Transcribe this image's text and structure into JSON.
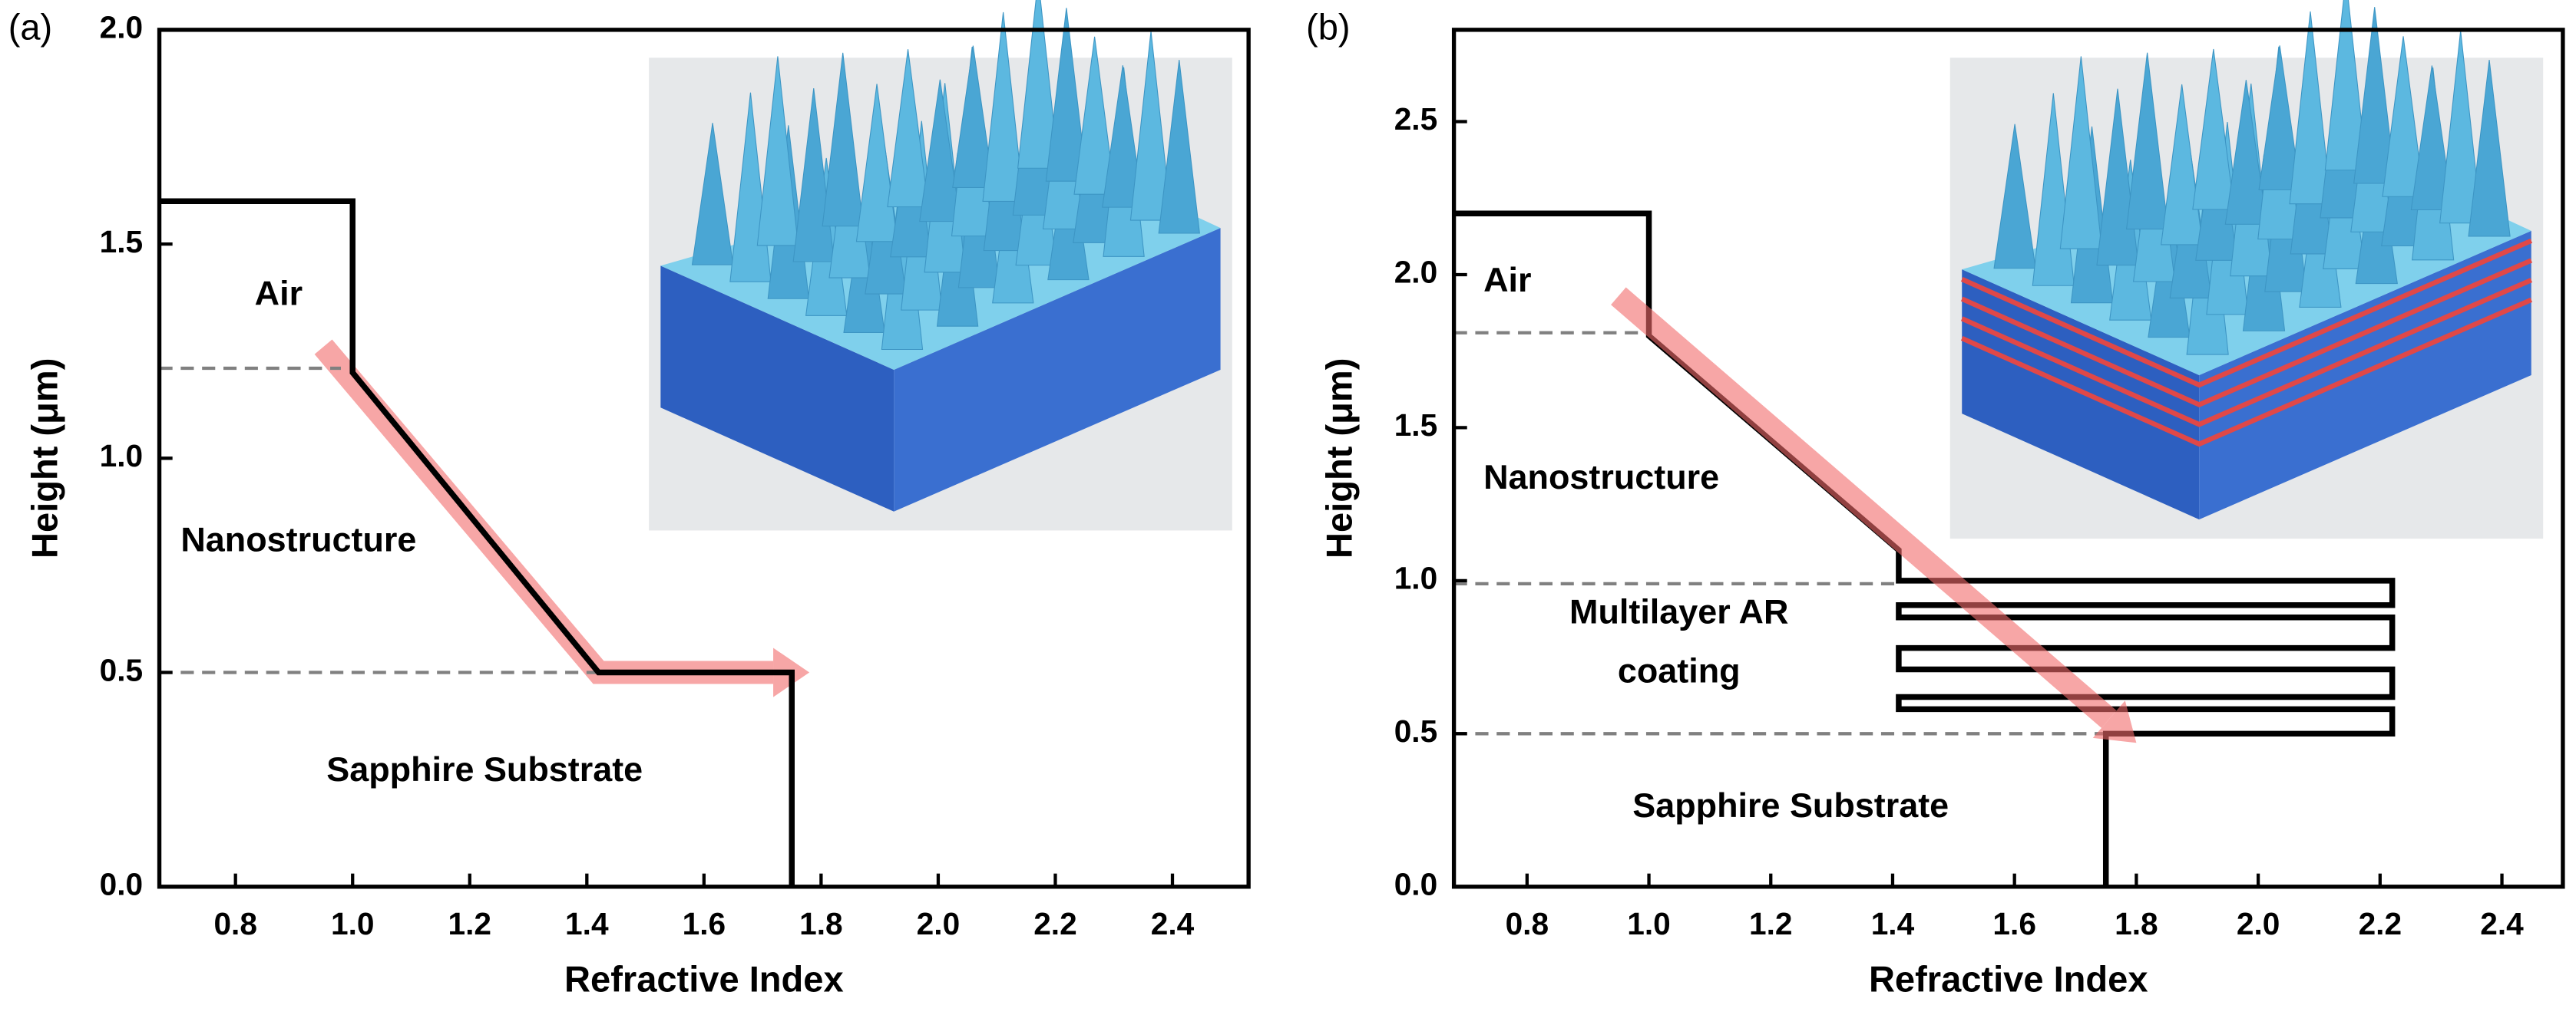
{
  "chart_data": [
    {
      "type": "line",
      "panel": "(a)",
      "xlabel": "Refractive Index",
      "ylabel": "Height (μm)",
      "xlim": [
        0.67,
        2.53
      ],
      "ylim": [
        0,
        2.0
      ],
      "xticks": [
        0.8,
        {
          "value": 1,
          "label": "1.0"
        },
        1.2,
        1.4,
        1.6,
        1.8,
        {
          "value": 2,
          "label": "2.0"
        },
        2.2,
        2.4
      ],
      "yticks": [
        {
          "value": 0,
          "label": "0.0"
        },
        0.5,
        {
          "value": 1,
          "label": "1.0"
        },
        1.5,
        {
          "value": 2,
          "label": "2.0"
        }
      ],
      "annotations": [
        "Air",
        "Nanostructure",
        "Sapphire Substrate"
      ],
      "series": [
        {
          "style": "arrow",
          "color": "#f26b6b",
          "x": [
            0.95,
            1.42,
            1.78
          ],
          "values": [
            1.26,
            0.5,
            0.5
          ]
        },
        {
          "style": "dashed",
          "color": "#808080",
          "x": [
            0.67,
            0.98
          ],
          "values": [
            1.21,
            1.21
          ]
        },
        {
          "style": "dashed",
          "color": "#808080",
          "x": [
            0.67,
            1.42
          ],
          "values": [
            0.5,
            0.5
          ]
        },
        {
          "style": "solid",
          "color": "#000000",
          "x": [
            0.67,
            1.0,
            1.0,
            1.42,
            1.75,
            1.75
          ],
          "values": [
            1.6,
            1.6,
            1.2,
            0.5,
            0.5,
            0
          ]
        }
      ]
    },
    {
      "type": "line",
      "panel": "(b)",
      "xlabel": "Refractive Index",
      "ylabel": "Height (μm)",
      "xlim": [
        0.68,
        2.5
      ],
      "ylim": [
        0,
        2.8
      ],
      "xticks": [
        0.8,
        {
          "value": 1,
          "label": "1.0"
        },
        1.2,
        1.4,
        1.6,
        1.8,
        {
          "value": 2,
          "label": "2.0"
        },
        2.2,
        2.4
      ],
      "yticks": [
        {
          "value": 0,
          "label": "0.0"
        },
        0.5,
        {
          "value": 1,
          "label": "1.0"
        },
        1.5,
        {
          "value": 2,
          "label": "2.0"
        },
        2.5
      ],
      "annotations": [
        "Air",
        "Nanostructure",
        "Multilayer AR",
        "coating",
        "Sapphire Substrate"
      ],
      "series": [
        {
          "style": "dashed",
          "color": "#808080",
          "x": [
            0.68,
            1.0
          ],
          "values": [
            1.81,
            1.81
          ]
        },
        {
          "style": "dashed",
          "color": "#808080",
          "x": [
            0.68,
            1.41
          ],
          "values": [
            0.99,
            0.99
          ]
        },
        {
          "style": "dashed",
          "color": "#808080",
          "x": [
            0.68,
            1.75
          ],
          "values": [
            0.5,
            0.5
          ]
        },
        {
          "style": "solid",
          "color": "#000000",
          "x": [
            0.68,
            1.0,
            1.0,
            1.41,
            1.41,
            2.22,
            2.22,
            1.41,
            1.41,
            2.22,
            2.22,
            1.41,
            1.41,
            2.22,
            2.22,
            1.41,
            1.41,
            2.22,
            2.22,
            1.75,
            1.75
          ],
          "values": [
            2.2,
            2.2,
            1.8,
            1.1,
            1.0,
            1.0,
            0.92,
            0.92,
            0.88,
            0.88,
            0.78,
            0.78,
            0.71,
            0.71,
            0.62,
            0.62,
            0.58,
            0.58,
            0.5,
            0.5,
            0
          ]
        },
        {
          "style": "arrow",
          "color": "#f26b6b",
          "x": [
            0.95,
            1.8
          ],
          "values": [
            1.93,
            0.47
          ]
        }
      ]
    }
  ]
}
